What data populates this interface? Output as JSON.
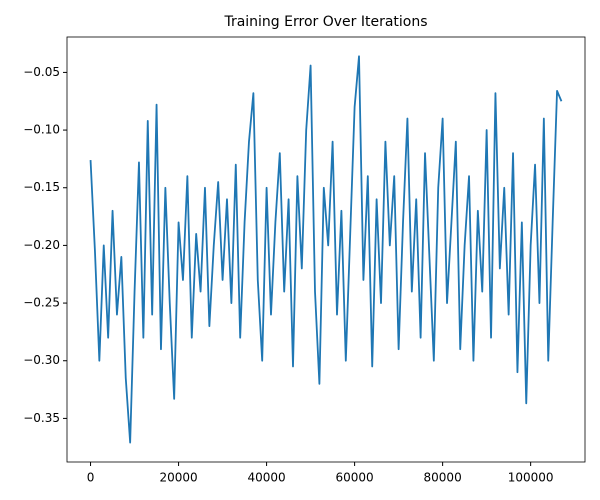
{
  "chart_data": {
    "type": "line",
    "title": "Training Error Over Iterations",
    "x": [
      0,
      1000,
      2000,
      3000,
      4000,
      5000,
      6000,
      7000,
      8000,
      9000,
      10000,
      11000,
      12000,
      13000,
      14000,
      15000,
      16000,
      17000,
      18000,
      19000,
      20000,
      21000,
      22000,
      23000,
      24000,
      25000,
      26000,
      27000,
      28000,
      29000,
      30000,
      31000,
      32000,
      33000,
      34000,
      35000,
      36000,
      37000,
      38000,
      39000,
      40000,
      41000,
      42000,
      43000,
      44000,
      45000,
      46000,
      47000,
      48000,
      49000,
      50000,
      51000,
      52000,
      53000,
      54000,
      55000,
      56000,
      57000,
      58000,
      59000,
      60000,
      61000,
      62000,
      63000,
      64000,
      65000,
      66000,
      67000,
      68000,
      69000,
      70000,
      71000,
      72000,
      73000,
      74000,
      75000,
      76000,
      77000,
      78000,
      79000,
      80000,
      81000,
      82000,
      83000,
      84000,
      85000,
      86000,
      87000,
      88000,
      89000,
      90000,
      91000,
      92000,
      93000,
      94000,
      95000,
      96000,
      97000,
      98000,
      99000,
      100000,
      101000,
      102000,
      103000,
      104000,
      105000,
      106000,
      107000
    ],
    "values": [
      -0.126,
      -0.205,
      -0.3,
      -0.2,
      -0.28,
      -0.17,
      -0.26,
      -0.21,
      -0.315,
      -0.371,
      -0.24,
      -0.128,
      -0.28,
      -0.092,
      -0.26,
      -0.078,
      -0.29,
      -0.15,
      -0.25,
      -0.333,
      -0.18,
      -0.23,
      -0.14,
      -0.28,
      -0.19,
      -0.24,
      -0.15,
      -0.27,
      -0.2,
      -0.145,
      -0.23,
      -0.16,
      -0.25,
      -0.13,
      -0.28,
      -0.18,
      -0.11,
      -0.068,
      -0.23,
      -0.3,
      -0.15,
      -0.26,
      -0.18,
      -0.12,
      -0.24,
      -0.16,
      -0.305,
      -0.14,
      -0.22,
      -0.1,
      -0.044,
      -0.24,
      -0.32,
      -0.15,
      -0.2,
      -0.11,
      -0.26,
      -0.17,
      -0.3,
      -0.19,
      -0.08,
      -0.036,
      -0.23,
      -0.14,
      -0.305,
      -0.16,
      -0.25,
      -0.11,
      -0.2,
      -0.14,
      -0.29,
      -0.18,
      -0.09,
      -0.24,
      -0.16,
      -0.28,
      -0.12,
      -0.21,
      -0.3,
      -0.15,
      -0.09,
      -0.25,
      -0.18,
      -0.11,
      -0.29,
      -0.2,
      -0.14,
      -0.3,
      -0.17,
      -0.24,
      -0.1,
      -0.28,
      -0.068,
      -0.22,
      -0.15,
      -0.26,
      -0.12,
      -0.31,
      -0.18,
      -0.337,
      -0.2,
      -0.13,
      -0.25,
      -0.09,
      -0.3,
      -0.18,
      -0.066,
      -0.075
    ],
    "color": "#1f77b4",
    "xlim": [
      -5350,
      112350
    ],
    "xticks": [
      0,
      20000,
      40000,
      60000,
      80000,
      100000
    ],
    "ylim": [
      -0.3878,
      -0.0193
    ],
    "yticks": [
      {
        "value": -0.35,
        "label": "−0.35"
      },
      {
        "value": -0.3,
        "label": "−0.30"
      },
      {
        "value": -0.25,
        "label": "−0.25"
      },
      {
        "value": -0.2,
        "label": "−0.20"
      },
      {
        "value": -0.15,
        "label": "−0.15"
      },
      {
        "value": -0.1,
        "label": "−0.10"
      },
      {
        "value": -0.05,
        "label": "−0.05"
      }
    ],
    "grid": false
  }
}
